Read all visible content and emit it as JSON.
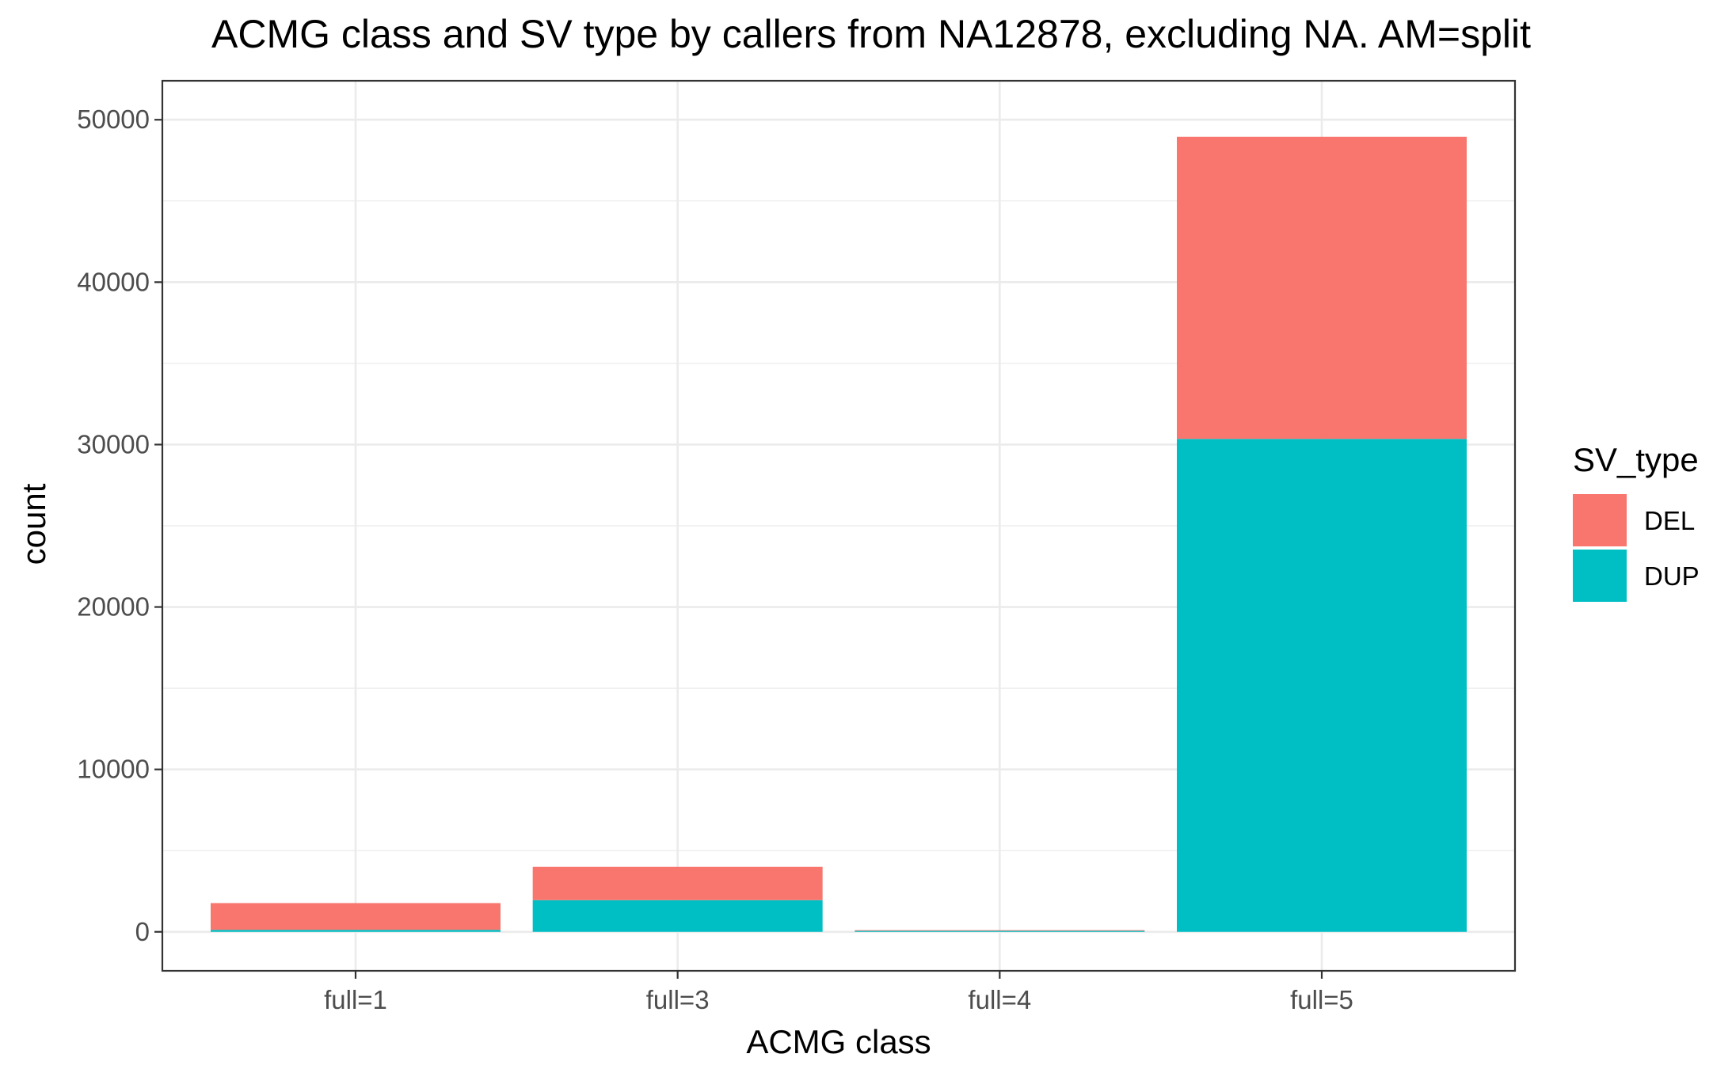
{
  "chart_data": {
    "type": "bar",
    "stacked": true,
    "title": "ACMG class and SV type by callers from NA12878, excluding NA. AM=split",
    "xlabel": "ACMG class",
    "ylabel": "count",
    "categories": [
      "full=1",
      "full=3",
      "full=4",
      "full=5"
    ],
    "series": [
      {
        "name": "DEL",
        "color": "#F8766D",
        "values": [
          1650,
          2050,
          40,
          18600
        ]
      },
      {
        "name": "DUP",
        "color": "#00BFC4",
        "values": [
          120,
          1950,
          60,
          30350
        ]
      }
    ],
    "ylim": [
      -2400,
      52400
    ],
    "yticks": [
      0,
      10000,
      20000,
      30000,
      40000,
      50000
    ],
    "grid": true,
    "legend": {
      "title": "SV_type",
      "position": "right"
    }
  }
}
